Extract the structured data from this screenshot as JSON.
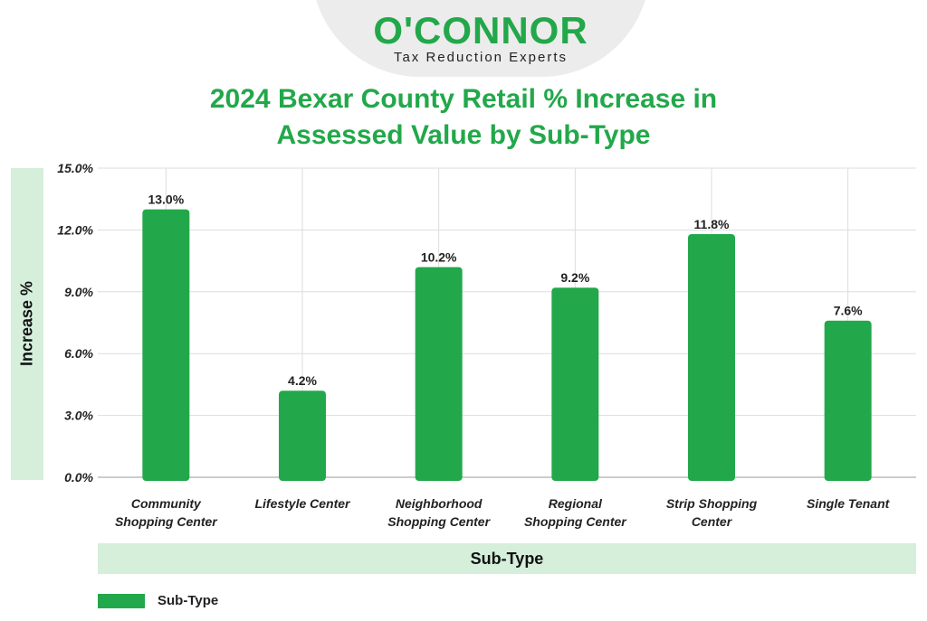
{
  "brand": {
    "name": "O'CONNOR",
    "tagline": "Tax Reduction Experts"
  },
  "chart_data": {
    "type": "bar",
    "title": [
      "2024 Bexar County Retail % Increase in",
      "Assessed Value by Sub-Type"
    ],
    "xlabel": "Sub-Type",
    "ylabel": "Increase %",
    "categories": [
      [
        "Community",
        "Shopping Center"
      ],
      [
        "Lifestyle Center"
      ],
      [
        "Neighborhood",
        "Shopping Center"
      ],
      [
        "Regional",
        "Shopping Center"
      ],
      [
        "Strip Shopping",
        "Center"
      ],
      [
        "Single Tenant"
      ]
    ],
    "series": [
      {
        "name": "Sub-Type",
        "values": [
          13.0,
          4.2,
          10.2,
          9.2,
          11.8,
          7.6
        ]
      }
    ],
    "data_labels": [
      "13.0%",
      "4.2%",
      "10.2%",
      "9.2%",
      "11.8%",
      "7.6%"
    ],
    "y_ticks": [
      0,
      3,
      6,
      9,
      12,
      15
    ],
    "y_tick_labels": [
      "0.0%",
      "3.0%",
      "6.0%",
      "9.0%",
      "12.0%",
      "15.0%"
    ],
    "ylim": [
      0,
      15
    ],
    "grid": true,
    "legend_position": "bottom-left",
    "colors": {
      "bar": "#22a84a",
      "title": "#22a84a",
      "label_band": "#d5efdb",
      "grid": "#dddddd"
    }
  }
}
